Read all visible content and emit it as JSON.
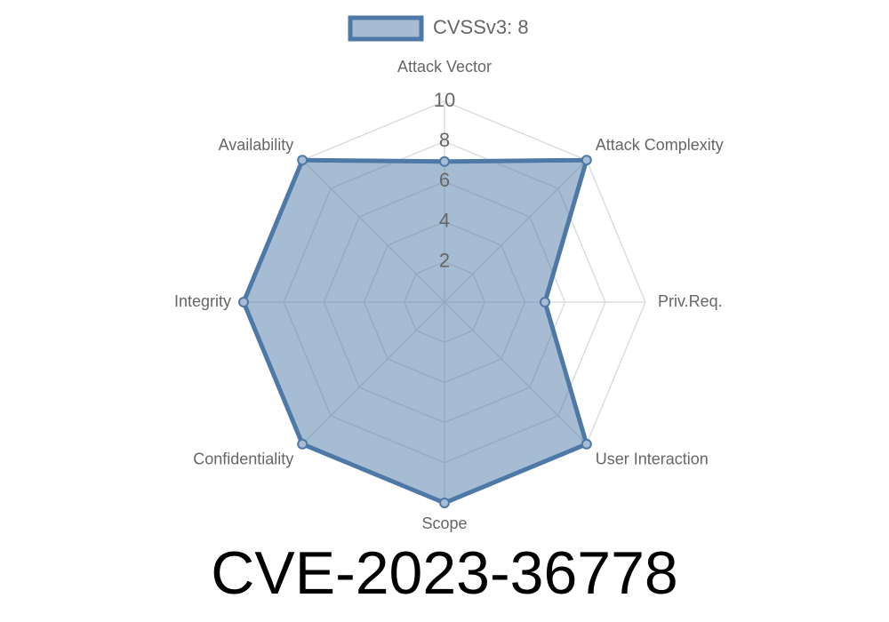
{
  "chart_data": {
    "type": "radar",
    "title": "CVE-2023-36778",
    "categories": [
      "Attack Vector",
      "Attack Complexity",
      "Priv.Req.",
      "User Interaction",
      "Scope",
      "Confidentiality",
      "Integrity",
      "Availability"
    ],
    "series": [
      {
        "name": "CVSSv3: 8",
        "color": "#4e79a7",
        "values": [
          7,
          10,
          5,
          10,
          10,
          10,
          10,
          10
        ]
      }
    ],
    "rlim": [
      0,
      10
    ],
    "rticks": [
      2,
      4,
      6,
      8,
      10
    ],
    "grid": true,
    "legend": "top"
  }
}
